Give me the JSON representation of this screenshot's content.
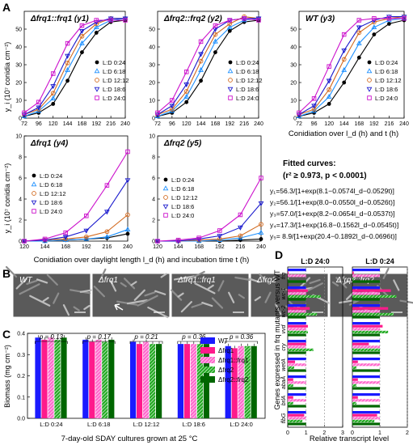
{
  "panel_letters": {
    "A": "A",
    "B": "B",
    "C": "C",
    "D": "D"
  },
  "colors": {
    "L:D 0:24": "#000000",
    "L:D 6:18": "#1e90ff",
    "L:D 12:12": "#d2691e",
    "L:D 18:6": "#1a1acd",
    "L:D 24:0": "#cc11cc",
    "WT": "#1a1aff",
    "Δfrq1": "#ff1a8c",
    "Δfrq1::frq1": "#ff66cc",
    "Δfrq2": "#22aa22",
    "Δfrq2::frq2": "#006600"
  },
  "legend_entries": [
    "L:D 0:24",
    "L:D 6:18",
    "L:D 12:12",
    "L:D 18:6",
    "L:D 24:0"
  ],
  "fitted": {
    "title": "Fitted curves:",
    "stat": "(r² ≥ 0.973, p < 0.0001)",
    "equations": [
      "y₁=56.3/[1+exp(8.1−0.0574l_d−0.0529t)]",
      "y₂=56.1/[1+exp(8.0−0.0550l_d−0.0526t)]",
      "y₃=57.0/[1+exp(8.2−0.0654l_d−0.0537t)]",
      "y₄=17.3/[1+exp(16.8−0.1562l_d−0.0545t)]",
      "y₅= 8.9/[1+exp(20.4−0.1892l_d−0.0696t)]"
    ]
  },
  "labels": {
    "A_ylabel": "y_i (10⁷ conidia cm⁻²)",
    "A_xlabel_top": "Conidiation over l_d (h) and t (h)",
    "A_xlabel_bottom": "Conidiation over daylight length l_d (h) and incubation time t (h)",
    "B_strains": [
      "WT",
      "Δfrq1",
      "Δfrq1::frq1",
      "Δfrq2",
      "Δfrq2::frq2"
    ],
    "C_ylabel": "Biomass (mg cm⁻²)",
    "C_xlabel": "7-day-old SDAY cultures grown at 25 °C",
    "C_pvalues": [
      "p = 0.13",
      "p = 0.17",
      "p = 0.21",
      "p = 0.36",
      "p = 0.36"
    ],
    "D_ylabel": "Genes expressed in frq mutants versus WT",
    "D_xlabel": "Relative transcript level",
    "D_titles": [
      "L:D 24:0",
      "L:D 0:24"
    ],
    "C_legend": [
      "WT",
      "Δfrq1",
      "Δfrq1::frq1",
      "Δfrq2",
      "Δfrq2::frq2"
    ]
  },
  "chart_data": [
    {
      "type": "scatter",
      "panel": "A",
      "title": "Δfrq1::frq1 (y1)",
      "x": [
        72,
        96,
        120,
        144,
        168,
        192,
        216,
        240
      ],
      "xlim": [
        72,
        240
      ],
      "ylim": [
        0,
        60
      ],
      "yticks": [
        0,
        10,
        20,
        30,
        40,
        50
      ],
      "series": [
        {
          "name": "L:D 0:24",
          "values": [
            1,
            3,
            8,
            21,
            37,
            48,
            54,
            55
          ]
        },
        {
          "name": "L:D 6:18",
          "values": [
            1,
            4,
            11,
            27,
            42,
            51,
            55,
            56
          ]
        },
        {
          "name": "L:D 12:12",
          "values": [
            2,
            5,
            14,
            31,
            46,
            53,
            56,
            56
          ]
        },
        {
          "name": "L:D 18:6",
          "values": [
            2,
            6,
            18,
            35,
            49,
            54,
            56,
            56
          ]
        },
        {
          "name": "L:D 24:0",
          "values": [
            3,
            9,
            25,
            42,
            52,
            55,
            55,
            55
          ]
        }
      ]
    },
    {
      "type": "scatter",
      "panel": "A",
      "title": "Δfrq2::frq2 (y2)",
      "x": [
        72,
        96,
        120,
        144,
        168,
        192,
        216,
        240
      ],
      "xlim": [
        72,
        240
      ],
      "ylim": [
        0,
        60
      ],
      "yticks": [
        0,
        10,
        20,
        30,
        40,
        50
      ],
      "series": [
        {
          "name": "L:D 0:24",
          "values": [
            1,
            3,
            9,
            21,
            37,
            49,
            54,
            55
          ]
        },
        {
          "name": "L:D 6:18",
          "values": [
            1,
            4,
            12,
            27,
            43,
            51,
            55,
            56
          ]
        },
        {
          "name": "L:D 12:12",
          "values": [
            2,
            5,
            15,
            32,
            47,
            53,
            57,
            56
          ]
        },
        {
          "name": "L:D 18:6",
          "values": [
            2,
            7,
            19,
            36,
            50,
            55,
            56,
            56
          ]
        },
        {
          "name": "L:D 24:0",
          "values": [
            3,
            10,
            26,
            43,
            52,
            55,
            56,
            55
          ]
        }
      ]
    },
    {
      "type": "scatter",
      "panel": "A",
      "title": "WT (y3)",
      "x": [
        72,
        96,
        120,
        144,
        168,
        192,
        216,
        240
      ],
      "xlim": [
        72,
        240
      ],
      "ylim": [
        0,
        60
      ],
      "yticks": [
        0,
        10,
        20,
        30,
        40,
        50
      ],
      "series": [
        {
          "name": "L:D 0:24",
          "values": [
            1,
            3,
            8,
            20,
            34,
            47,
            53,
            55
          ]
        },
        {
          "name": "L:D 6:18",
          "values": [
            1,
            4,
            12,
            27,
            42,
            51,
            55,
            56
          ]
        },
        {
          "name": "L:D 12:12",
          "values": [
            2,
            5,
            16,
            33,
            48,
            54,
            56,
            57
          ]
        },
        {
          "name": "L:D 18:6",
          "values": [
            2,
            7,
            21,
            38,
            51,
            55,
            57,
            57
          ]
        },
        {
          "name": "L:D 24:0",
          "values": [
            3,
            11,
            29,
            47,
            55,
            56,
            56,
            56
          ]
        }
      ]
    },
    {
      "type": "scatter",
      "panel": "A",
      "title": "Δfrq1 (y4)",
      "x": [
        120,
        144,
        168,
        192,
        216,
        240
      ],
      "xlim": [
        120,
        240
      ],
      "ylim": [
        0,
        10
      ],
      "yticks": [
        0,
        2,
        4,
        6,
        8,
        10
      ],
      "series": [
        {
          "name": "L:D 0:24",
          "values": [
            0,
            0,
            0.1,
            0.2,
            0.3,
            0.7
          ]
        },
        {
          "name": "L:D 6:18",
          "values": [
            0,
            0,
            0.1,
            0.2,
            0.4,
            1.1
          ]
        },
        {
          "name": "L:D 12:12",
          "values": [
            0,
            0.1,
            0.2,
            0.4,
            0.9,
            2.5
          ]
        },
        {
          "name": "L:D 18:6",
          "values": [
            0,
            0.1,
            0.4,
            1.0,
            2.8,
            5.8
          ]
        },
        {
          "name": "L:D 24:0",
          "values": [
            0,
            0.2,
            0.8,
            2.4,
            5.3,
            8.5
          ]
        }
      ]
    },
    {
      "type": "scatter",
      "panel": "A",
      "title": "Δfrq2 (y5)",
      "x": [
        120,
        144,
        168,
        192,
        216,
        240
      ],
      "xlim": [
        120,
        240
      ],
      "ylim": [
        0,
        10
      ],
      "yticks": [
        0,
        2,
        4,
        6,
        8,
        10
      ],
      "series": [
        {
          "name": "L:D 0:24",
          "values": [
            0,
            0,
            0,
            0,
            0.1,
            0.2
          ]
        },
        {
          "name": "L:D 6:18",
          "values": [
            0,
            0,
            0,
            0.1,
            0.3,
            0.8
          ]
        },
        {
          "name": "L:D 12:12",
          "values": [
            0,
            0,
            0.1,
            0.2,
            0.5,
            1.6
          ]
        },
        {
          "name": "L:D 18:6",
          "values": [
            0,
            0,
            0.2,
            0.5,
            1.3,
            3.6
          ]
        },
        {
          "name": "L:D 24:0",
          "values": [
            0,
            0.1,
            0.3,
            1.0,
            2.5,
            6.0
          ]
        }
      ]
    },
    {
      "type": "bar",
      "panel": "C",
      "categories": [
        "L:D 0:24",
        "L:D 6:18",
        "L:D 12:12",
        "L:D 18:6",
        "L:D 24:0"
      ],
      "ylim": [
        0,
        0.4
      ],
      "yticks": [
        0,
        0.1,
        0.2,
        0.3,
        0.4
      ],
      "series": [
        {
          "name": "WT",
          "values": [
            0.38,
            0.37,
            0.36,
            0.35,
            0.34
          ]
        },
        {
          "name": "Δfrq1",
          "values": [
            0.37,
            0.36,
            0.35,
            0.35,
            0.33
          ]
        },
        {
          "name": "Δfrq1::frq1",
          "values": [
            0.38,
            0.37,
            0.36,
            0.35,
            0.34
          ]
        },
        {
          "name": "Δfrq2",
          "values": [
            0.37,
            0.36,
            0.35,
            0.35,
            0.34
          ]
        },
        {
          "name": "Δfrq2::frq2",
          "values": [
            0.38,
            0.37,
            0.35,
            0.35,
            0.34
          ]
        }
      ]
    },
    {
      "type": "bar",
      "panel": "D",
      "title": "L:D 24:0",
      "categories": [
        "frq",
        "wc-1",
        "wc-2",
        "vvd",
        "cry",
        "wetA",
        "abaA",
        "brlA",
        "flbG"
      ],
      "xlim": [
        0,
        3
      ],
      "xticks": [
        0,
        1,
        2,
        3
      ],
      "series": [
        {
          "name": "WT",
          "values": [
            1,
            1,
            1,
            1,
            1,
            1,
            1,
            1,
            1
          ]
        },
        {
          "name": "Δfrq1",
          "values": [
            0.05,
            1.1,
            1.2,
            1.1,
            1.0,
            0.4,
            0.3,
            0.3,
            0.9
          ]
        },
        {
          "name": "Δfrq1::frq1",
          "values": [
            1,
            1,
            1,
            1,
            1,
            1,
            1,
            1,
            1
          ]
        },
        {
          "name": "Δfrq2",
          "values": [
            0.05,
            1.8,
            1.6,
            1.1,
            1.4,
            0.35,
            0.3,
            0.3,
            0.8
          ]
        },
        {
          "name": "Δfrq2::frq2",
          "values": [
            1,
            1,
            1,
            1,
            1,
            1,
            1,
            1,
            1
          ]
        }
      ]
    },
    {
      "type": "bar",
      "panel": "D",
      "title": "L:D 0:24",
      "categories": [
        "frq",
        "wc-1",
        "wc-2",
        "vvd",
        "cry",
        "wetA",
        "abaA",
        "brlA",
        "flbG"
      ],
      "xlim": [
        0,
        2
      ],
      "xticks": [
        0,
        1,
        2
      ],
      "series": [
        {
          "name": "WT",
          "values": [
            1,
            1,
            1,
            1,
            1,
            1,
            1,
            1,
            1
          ]
        },
        {
          "name": "Δfrq1",
          "values": [
            0.05,
            1.4,
            1.3,
            1.1,
            0.6,
            0.2,
            0.2,
            0.2,
            0.9
          ]
        },
        {
          "name": "Δfrq1::frq1",
          "values": [
            1,
            1,
            1,
            1,
            1,
            1,
            1,
            1,
            1
          ]
        },
        {
          "name": "Δfrq2",
          "values": [
            0.05,
            1.6,
            1.5,
            1.3,
            1.0,
            0.15,
            0.15,
            0.15,
            0.8
          ]
        },
        {
          "name": "Δfrq2::frq2",
          "values": [
            1,
            1,
            1,
            1,
            1,
            1,
            1,
            1,
            1
          ]
        }
      ]
    }
  ]
}
